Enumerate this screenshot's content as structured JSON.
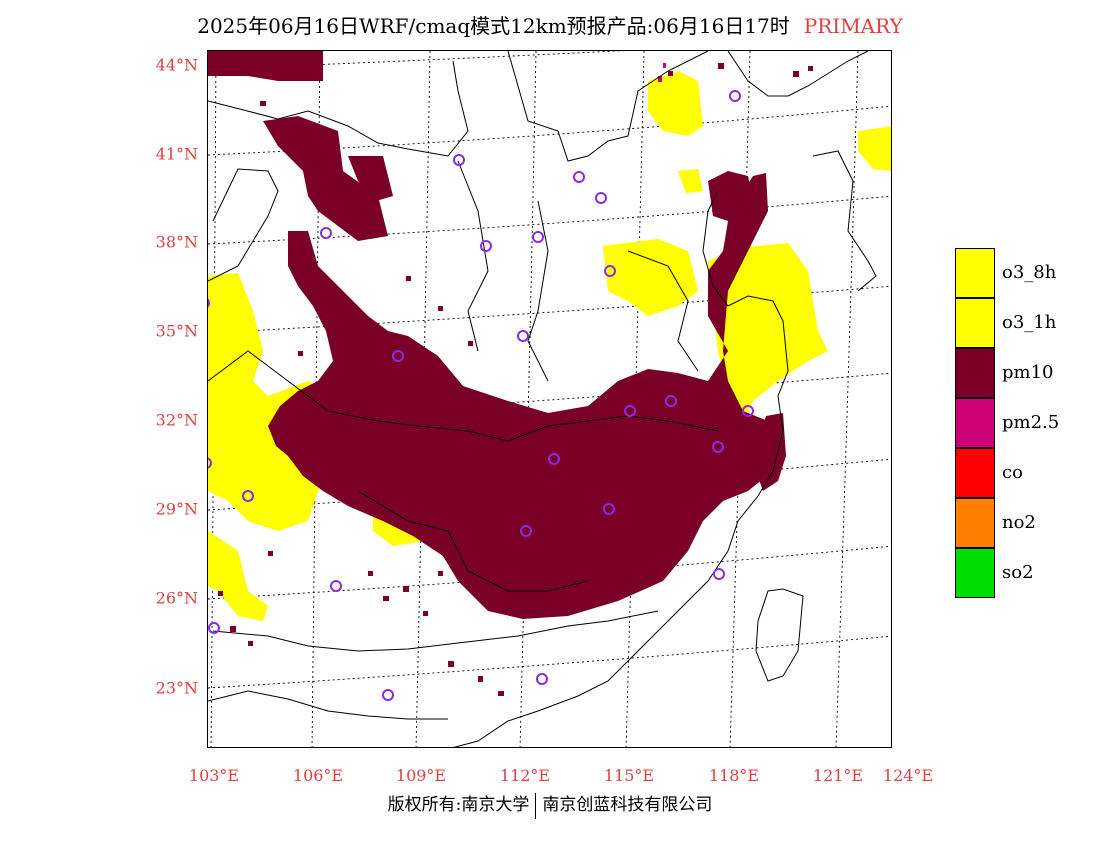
{
  "title": {
    "main": "2025年06月16日WRF/cmaq模式12km预报产品:06月16日17时",
    "tag": "PRIMARY"
  },
  "axes": {
    "lat_labels": [
      "44°N",
      "41°N",
      "38°N",
      "35°N",
      "32°N",
      "29°N",
      "26°N",
      "23°N"
    ],
    "lon_labels": [
      "103°E",
      "106°E",
      "109°E",
      "112°E",
      "115°E",
      "118°E",
      "121°E",
      "124°E"
    ]
  },
  "legend": {
    "items": [
      {
        "label": "o3_8h",
        "color": "#ffff00"
      },
      {
        "label": "o3_1h",
        "color": "#ffff00"
      },
      {
        "label": "pm10",
        "color": "#7a0028"
      },
      {
        "label": "pm2.5",
        "color": "#cc0077"
      },
      {
        "label": "co",
        "color": "#ff0000"
      },
      {
        "label": "no2",
        "color": "#ff8000"
      },
      {
        "label": "so2",
        "color": "#00dd00"
      }
    ]
  },
  "copyright": {
    "left": "版权所有:南京大学",
    "right": "南京创蓝科技有限公司"
  },
  "colors": {
    "label": "#e04040",
    "pm10": "#7a0028",
    "o3": "#ffff00",
    "station": "#8a2be2"
  }
}
